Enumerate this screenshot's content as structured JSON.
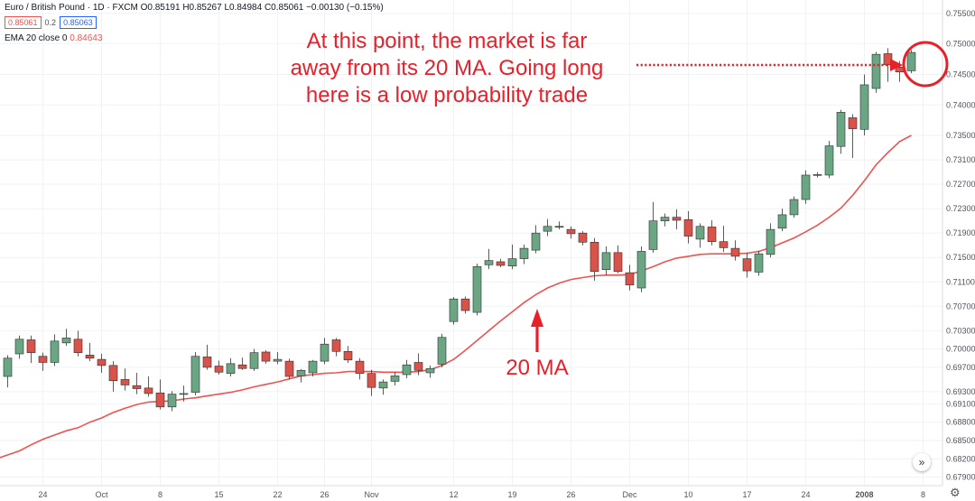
{
  "header": {
    "symbol_line": "Euro / British Pound · 1D · FXCM",
    "ohlc": "O0.85191 H0.85267 L0.84984 C0.85061 −0.00130 (−0.15%)",
    "bid": "0.85061",
    "spread": "0.2",
    "ask": "0.85063",
    "ema_label": "EMA 20 close 0",
    "ema_value": "0.84643"
  },
  "annotations": {
    "top_line1": "At this point, the market is far",
    "top_line2": "away from its 20 MA. Going long",
    "top_line3": "here is a low probability trade",
    "ma_label": "20 MA"
  },
  "colors": {
    "up": "#6aa584",
    "down": "#d9534a",
    "ema": "#ef5350",
    "annotation": "#e8202a"
  },
  "icons": {
    "scroll": "double-chevron-right-icon",
    "settings": "gear-icon"
  },
  "chart_data": {
    "type": "candlestick",
    "ylim": [
      0.6776,
      0.7572
    ],
    "y_ticks": [
      "0.75500",
      "0.75000",
      "0.74500",
      "0.74000",
      "0.73500",
      "0.73100",
      "0.72700",
      "0.72300",
      "0.71900",
      "0.71500",
      "0.71100",
      "0.70700",
      "0.70300",
      "0.70000",
      "0.69700",
      "0.69300",
      "0.69100",
      "0.68800",
      "0.68500",
      "0.68200",
      "0.67900"
    ],
    "x_ticks": [
      {
        "label": "24",
        "i": 3
      },
      {
        "label": "Oct",
        "i": 8
      },
      {
        "label": "8",
        "i": 13
      },
      {
        "label": "15",
        "i": 18
      },
      {
        "label": "22",
        "i": 23
      },
      {
        "label": "26",
        "i": 27
      },
      {
        "label": "Nov",
        "i": 31
      },
      {
        "label": "12",
        "i": 38
      },
      {
        "label": "19",
        "i": 43
      },
      {
        "label": "26",
        "i": 48
      },
      {
        "label": "Dec",
        "i": 53
      },
      {
        "label": "10",
        "i": 58
      },
      {
        "label": "17",
        "i": 63
      },
      {
        "label": "24",
        "i": 68
      },
      {
        "label": "2008",
        "i": 73
      },
      {
        "label": "8",
        "i": 78
      }
    ],
    "candles": [
      [
        0.6955,
        0.699,
        0.6937,
        0.6985
      ],
      [
        0.6992,
        0.7022,
        0.6984,
        0.7016
      ],
      [
        0.7015,
        0.7022,
        0.6977,
        0.6994
      ],
      [
        0.6988,
        0.6994,
        0.6964,
        0.6978
      ],
      [
        0.6978,
        0.7024,
        0.6972,
        0.7013
      ],
      [
        0.701,
        0.7033,
        0.7005,
        0.7018
      ],
      [
        0.7016,
        0.703,
        0.6988,
        0.6994
      ],
      [
        0.699,
        0.701,
        0.698,
        0.6985
      ],
      [
        0.6983,
        0.6992,
        0.6961,
        0.6973
      ],
      [
        0.6973,
        0.698,
        0.693,
        0.6948
      ],
      [
        0.695,
        0.6968,
        0.6932,
        0.6941
      ],
      [
        0.694,
        0.6961,
        0.6926,
        0.6935
      ],
      [
        0.6936,
        0.6955,
        0.6922,
        0.6927
      ],
      [
        0.6928,
        0.695,
        0.6901,
        0.6905
      ],
      [
        0.6905,
        0.6931,
        0.6898,
        0.6926
      ],
      [
        0.6926,
        0.694,
        0.6914,
        0.6927
      ],
      [
        0.6929,
        0.6995,
        0.6924,
        0.6988
      ],
      [
        0.6987,
        0.7007,
        0.6966,
        0.697
      ],
      [
        0.6972,
        0.6981,
        0.6958,
        0.6962
      ],
      [
        0.696,
        0.6985,
        0.6955,
        0.6976
      ],
      [
        0.6974,
        0.6986,
        0.6966,
        0.6968
      ],
      [
        0.6968,
        0.7,
        0.6964,
        0.6994
      ],
      [
        0.6995,
        0.6998,
        0.6976,
        0.698
      ],
      [
        0.698,
        0.6995,
        0.6975,
        0.6983
      ],
      [
        0.698,
        0.6984,
        0.695,
        0.6955
      ],
      [
        0.6956,
        0.6967,
        0.6945,
        0.6965
      ],
      [
        0.6961,
        0.6982,
        0.6955,
        0.698
      ],
      [
        0.698,
        0.7018,
        0.6975,
        0.7008
      ],
      [
        0.7015,
        0.7018,
        0.6988,
        0.6996
      ],
      [
        0.6996,
        0.7005,
        0.6977,
        0.6982
      ],
      [
        0.698,
        0.6985,
        0.695,
        0.696
      ],
      [
        0.696,
        0.6966,
        0.6923,
        0.6937
      ],
      [
        0.6936,
        0.695,
        0.6925,
        0.6946
      ],
      [
        0.6947,
        0.6962,
        0.694,
        0.6956
      ],
      [
        0.6958,
        0.6982,
        0.6952,
        0.6974
      ],
      [
        0.6978,
        0.6993,
        0.6957,
        0.6965
      ],
      [
        0.6961,
        0.6973,
        0.6953,
        0.6968
      ],
      [
        0.6975,
        0.7025,
        0.697,
        0.7019
      ],
      [
        0.7045,
        0.7085,
        0.704,
        0.7082
      ],
      [
        0.7082,
        0.7086,
        0.7058,
        0.7063
      ],
      [
        0.706,
        0.714,
        0.7055,
        0.7135
      ],
      [
        0.7138,
        0.7164,
        0.7131,
        0.7145
      ],
      [
        0.7143,
        0.7148,
        0.7134,
        0.7137
      ],
      [
        0.7136,
        0.7171,
        0.7131,
        0.7148
      ],
      [
        0.7148,
        0.7171,
        0.7139,
        0.7165
      ],
      [
        0.7162,
        0.7203,
        0.7157,
        0.719
      ],
      [
        0.7193,
        0.7213,
        0.7185,
        0.7201
      ],
      [
        0.7201,
        0.7209,
        0.7196,
        0.72
      ],
      [
        0.7196,
        0.7201,
        0.7181,
        0.7189
      ],
      [
        0.719,
        0.7193,
        0.717,
        0.7175
      ],
      [
        0.7175,
        0.7182,
        0.7112,
        0.7127
      ],
      [
        0.713,
        0.7168,
        0.7121,
        0.7158
      ],
      [
        0.7158,
        0.717,
        0.7124,
        0.7127
      ],
      [
        0.7125,
        0.7138,
        0.7096,
        0.7105
      ],
      [
        0.71,
        0.7168,
        0.7093,
        0.716
      ],
      [
        0.7163,
        0.7241,
        0.7158,
        0.721
      ],
      [
        0.721,
        0.7222,
        0.7201,
        0.7216
      ],
      [
        0.7216,
        0.7229,
        0.7196,
        0.7211
      ],
      [
        0.7212,
        0.7226,
        0.7173,
        0.7185
      ],
      [
        0.718,
        0.7206,
        0.7166,
        0.7201
      ],
      [
        0.72,
        0.7211,
        0.717,
        0.7176
      ],
      [
        0.7176,
        0.7202,
        0.7159,
        0.7166
      ],
      [
        0.7165,
        0.7178,
        0.7145,
        0.7152
      ],
      [
        0.7148,
        0.7158,
        0.7117,
        0.7128
      ],
      [
        0.7126,
        0.7161,
        0.712,
        0.7156
      ],
      [
        0.7155,
        0.7206,
        0.715,
        0.7196
      ],
      [
        0.7198,
        0.723,
        0.7193,
        0.722
      ],
      [
        0.722,
        0.725,
        0.7215,
        0.7245
      ],
      [
        0.7245,
        0.7293,
        0.7238,
        0.7285
      ],
      [
        0.7285,
        0.729,
        0.7281,
        0.7286
      ],
      [
        0.7285,
        0.7341,
        0.728,
        0.7333
      ],
      [
        0.7332,
        0.7392,
        0.732,
        0.7388
      ],
      [
        0.7379,
        0.7385,
        0.7313,
        0.7361
      ],
      [
        0.736,
        0.745,
        0.735,
        0.7433
      ],
      [
        0.7427,
        0.7487,
        0.742,
        0.7483
      ],
      [
        0.7484,
        0.7493,
        0.7438,
        0.7466
      ],
      [
        0.7462,
        0.7472,
        0.7438,
        0.7454
      ],
      [
        0.7456,
        0.749,
        0.7452,
        0.7486
      ]
    ],
    "ema20": [
      0.6822,
      0.6833,
      0.6843,
      0.6852,
      0.6859,
      0.6866,
      0.6871,
      0.688,
      0.6887,
      0.6896,
      0.6903,
      0.6909,
      0.6913,
      0.6914,
      0.6915,
      0.6918,
      0.692,
      0.6923,
      0.6926,
      0.6929,
      0.6933,
      0.6938,
      0.6942,
      0.6946,
      0.6951,
      0.6956,
      0.6958,
      0.696,
      0.6961,
      0.6963,
      0.6963,
      0.6963,
      0.6962,
      0.6962,
      0.6962,
      0.6963,
      0.6966,
      0.6973,
      0.6983,
      0.6998,
      0.7014,
      0.703,
      0.7046,
      0.7061,
      0.7076,
      0.7089,
      0.71,
      0.7108,
      0.7114,
      0.7117,
      0.712,
      0.7121,
      0.7121,
      0.7122,
      0.7128,
      0.7135,
      0.7143,
      0.7149,
      0.7152,
      0.7155,
      0.7156,
      0.7156,
      0.7156,
      0.7157,
      0.716,
      0.7166,
      0.7174,
      0.7182,
      0.7192,
      0.7203,
      0.7216,
      0.7231,
      0.7252,
      0.7276,
      0.7302,
      0.7322,
      0.734,
      0.735
    ]
  }
}
